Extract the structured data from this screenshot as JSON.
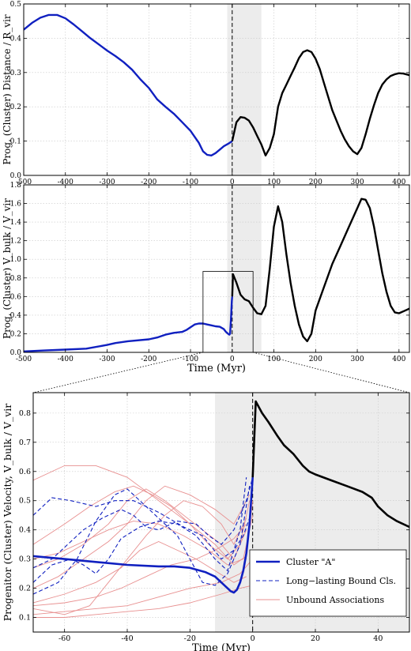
{
  "chart_data": [
    {
      "type": "line",
      "id": "top",
      "ylabel": "Prog, (Cluster) Distance / R_vir",
      "xlim": [
        -500,
        425
      ],
      "ylim": [
        0,
        0.5
      ],
      "xticks": [
        "-500",
        "-400",
        "-300",
        "-200",
        "-100",
        "0",
        "100",
        "200",
        "300",
        "400"
      ],
      "yticks": [
        "0.0",
        "0.1",
        "0.2",
        "0.3",
        "0.4",
        "0.5"
      ],
      "grid": true,
      "shaded_region": [
        -12,
        70
      ],
      "vline_x": 0,
      "series": [
        {
          "color": "#1020c0",
          "x": [
            -500,
            -480,
            -460,
            -440,
            -420,
            -400,
            -380,
            -360,
            -340,
            -320,
            -300,
            -280,
            -260,
            -240,
            -220,
            -200,
            -180,
            -160,
            -140,
            -120,
            -100,
            -80,
            -70,
            -60,
            -50,
            -40,
            -30,
            -20,
            -10,
            0
          ],
          "y": [
            0.425,
            0.445,
            0.46,
            0.468,
            0.468,
            0.458,
            0.44,
            0.42,
            0.4,
            0.382,
            0.364,
            0.348,
            0.33,
            0.308,
            0.28,
            0.255,
            0.222,
            0.2,
            0.18,
            0.155,
            0.13,
            0.095,
            0.07,
            0.06,
            0.058,
            0.065,
            0.075,
            0.085,
            0.092,
            0.1
          ]
        },
        {
          "color": "#000000",
          "x": [
            0,
            10,
            20,
            30,
            40,
            50,
            60,
            70,
            80,
            90,
            100,
            110,
            120,
            130,
            140,
            150,
            160,
            170,
            180,
            190,
            200,
            210,
            220,
            230,
            240,
            250,
            260,
            270,
            280,
            290,
            300,
            310,
            320,
            330,
            340,
            350,
            360,
            370,
            380,
            390,
            400,
            410,
            420,
            425
          ],
          "y": [
            0.1,
            0.155,
            0.17,
            0.168,
            0.16,
            0.14,
            0.115,
            0.09,
            0.058,
            0.08,
            0.12,
            0.2,
            0.24,
            0.265,
            0.29,
            0.315,
            0.342,
            0.36,
            0.365,
            0.36,
            0.34,
            0.31,
            0.27,
            0.23,
            0.19,
            0.16,
            0.13,
            0.105,
            0.085,
            0.07,
            0.062,
            0.08,
            0.12,
            0.165,
            0.205,
            0.24,
            0.265,
            0.28,
            0.29,
            0.295,
            0.298,
            0.297,
            0.294,
            0.292
          ]
        }
      ]
    },
    {
      "type": "line",
      "id": "mid",
      "ylabel": "Prog, (Cluster) V_bulk / V_vir",
      "xlabel": "Time (Myr)",
      "xlim": [
        -500,
        425
      ],
      "ylim": [
        0,
        1.8
      ],
      "xticks": [
        "-500",
        "-400",
        "-300",
        "-200",
        "-100",
        "0",
        "100",
        "200",
        "300",
        "400"
      ],
      "yticks": [
        "0.0",
        "0.2",
        "0.4",
        "0.6",
        "0.8",
        "1.0",
        "1.2",
        "1.4",
        "1.6",
        "1.8"
      ],
      "grid": true,
      "shaded_region": [
        -12,
        70
      ],
      "vline_x": 0,
      "inset_box": {
        "x": [
          -70,
          50
        ],
        "y": [
          0,
          0.87
        ]
      },
      "series": [
        {
          "color": "#1020c0",
          "x": [
            -500,
            -450,
            -400,
            -350,
            -300,
            -280,
            -250,
            -200,
            -180,
            -160,
            -140,
            -120,
            -110,
            -100,
            -90,
            -80,
            -70,
            -60,
            -50,
            -40,
            -30,
            -20,
            -15,
            -10,
            -7,
            -5,
            -3,
            -1,
            0
          ],
          "y": [
            0.01,
            0.02,
            0.03,
            0.04,
            0.08,
            0.1,
            0.12,
            0.14,
            0.16,
            0.19,
            0.21,
            0.22,
            0.24,
            0.27,
            0.3,
            0.31,
            0.31,
            0.3,
            0.29,
            0.28,
            0.275,
            0.25,
            0.22,
            0.2,
            0.19,
            0.2,
            0.35,
            0.55,
            0.6
          ]
        },
        {
          "color": "#000000",
          "x": [
            0,
            2,
            10,
            20,
            30,
            40,
            50,
            60,
            70,
            80,
            90,
            100,
            110,
            120,
            130,
            140,
            150,
            160,
            170,
            180,
            190,
            200,
            220,
            240,
            260,
            280,
            300,
            310,
            320,
            330,
            340,
            350,
            360,
            370,
            380,
            390,
            400,
            410,
            420,
            425
          ],
          "y": [
            0.6,
            0.84,
            0.75,
            0.62,
            0.57,
            0.55,
            0.48,
            0.42,
            0.41,
            0.5,
            0.9,
            1.35,
            1.57,
            1.4,
            1.05,
            0.75,
            0.5,
            0.3,
            0.17,
            0.12,
            0.2,
            0.45,
            0.7,
            0.95,
            1.15,
            1.35,
            1.55,
            1.65,
            1.64,
            1.55,
            1.35,
            1.1,
            0.85,
            0.65,
            0.5,
            0.43,
            0.42,
            0.44,
            0.46,
            0.47
          ]
        }
      ]
    },
    {
      "type": "line",
      "id": "bottom",
      "ylabel": "Progenitor (Cluster) Velocity, V_bulk / V_vir",
      "xlabel": "Time (Myr)",
      "xlim": [
        -70,
        50
      ],
      "ylim": [
        0.05,
        0.87
      ],
      "xticks": [
        "-60",
        "-40",
        "-20",
        "0",
        "20",
        "40"
      ],
      "yticks": [
        "0.1",
        "0.2",
        "0.3",
        "0.4",
        "0.5",
        "0.6",
        "0.7",
        "0.8"
      ],
      "grid": true,
      "shaded_region": [
        -12,
        50
      ],
      "vline_x": 0,
      "legend": {
        "position": "bottom-right",
        "entries": [
          {
            "label": "Cluster \"A\"",
            "style": "solid-thick",
            "color": "#1020c0"
          },
          {
            "label": "Long−lasting Bound Cls.",
            "style": "dashed",
            "color": "#1020c0"
          },
          {
            "label": "Unbound Associations",
            "style": "solid-thin",
            "color": "#e89090"
          }
        ]
      },
      "main_series": [
        {
          "name": "Cluster \"A\"",
          "color": "#1020c0",
          "x": [
            -70,
            -60,
            -50,
            -40,
            -30,
            -25,
            -20,
            -15,
            -12,
            -10,
            -9,
            -8,
            -7,
            -6,
            -5,
            -4,
            -3,
            -2,
            -1,
            0
          ],
          "y": [
            0.31,
            0.3,
            0.29,
            0.28,
            0.275,
            0.275,
            0.27,
            0.255,
            0.24,
            0.22,
            0.21,
            0.2,
            0.19,
            0.185,
            0.195,
            0.22,
            0.26,
            0.32,
            0.42,
            0.58
          ]
        },
        {
          "color": "#000000",
          "x": [
            0,
            1,
            3,
            5,
            8,
            10,
            13,
            16,
            18,
            20,
            25,
            30,
            35,
            38,
            40,
            43,
            46,
            50
          ],
          "y": [
            0.58,
            0.84,
            0.8,
            0.77,
            0.72,
            0.69,
            0.66,
            0.62,
            0.6,
            0.59,
            0.57,
            0.55,
            0.53,
            0.51,
            0.48,
            0.45,
            0.43,
            0.41
          ]
        }
      ],
      "bound_series": [
        {
          "x": [
            -70,
            -64,
            -58,
            -50,
            -44,
            -38,
            -30,
            -22,
            -16,
            -10,
            -6,
            -3,
            -1
          ],
          "y": [
            0.45,
            0.51,
            0.5,
            0.48,
            0.5,
            0.5,
            0.46,
            0.41,
            0.38,
            0.3,
            0.33,
            0.38,
            0.44
          ]
        },
        {
          "x": [
            -70,
            -62,
            -56,
            -50,
            -44,
            -40,
            -36,
            -30,
            -24,
            -20,
            -16,
            -12,
            -8,
            -4,
            -1
          ],
          "y": [
            0.18,
            0.22,
            0.3,
            0.43,
            0.52,
            0.54,
            0.5,
            0.44,
            0.38,
            0.3,
            0.22,
            0.21,
            0.25,
            0.35,
            0.55
          ]
        },
        {
          "x": [
            -70,
            -64,
            -60,
            -54,
            -48,
            -42,
            -38,
            -34,
            -30,
            -24,
            -18,
            -14,
            -10,
            -6,
            -2,
            0
          ],
          "y": [
            0.27,
            0.3,
            0.34,
            0.4,
            0.44,
            0.47,
            0.45,
            0.41,
            0.4,
            0.43,
            0.42,
            0.38,
            0.35,
            0.4,
            0.5,
            0.58
          ]
        },
        {
          "x": [
            -70,
            -64,
            -58,
            -54,
            -50,
            -46,
            -42,
            -36,
            -30,
            -24,
            -18,
            -12,
            -8,
            -4,
            -2
          ],
          "y": [
            0.22,
            0.28,
            0.3,
            0.28,
            0.25,
            0.3,
            0.37,
            0.41,
            0.43,
            0.42,
            0.38,
            0.3,
            0.26,
            0.4,
            0.58
          ]
        }
      ],
      "unbound_series": [
        {
          "x": [
            -70,
            -60,
            -50,
            -40,
            -30,
            -20,
            -12,
            -6,
            -2,
            0
          ],
          "y": [
            0.57,
            0.62,
            0.62,
            0.58,
            0.5,
            0.42,
            0.35,
            0.28,
            0.31,
            0.5
          ]
        },
        {
          "x": [
            -70,
            -60,
            -52,
            -44,
            -38,
            -32,
            -26,
            -20,
            -14,
            -8,
            -4,
            -1
          ],
          "y": [
            0.35,
            0.42,
            0.48,
            0.53,
            0.55,
            0.52,
            0.48,
            0.42,
            0.35,
            0.3,
            0.35,
            0.5
          ]
        },
        {
          "x": [
            -70,
            -62,
            -54,
            -46,
            -40,
            -34,
            -28,
            -22,
            -16,
            -10,
            -6,
            -2
          ],
          "y": [
            0.27,
            0.3,
            0.35,
            0.42,
            0.5,
            0.54,
            0.5,
            0.45,
            0.4,
            0.35,
            0.3,
            0.4
          ]
        },
        {
          "x": [
            -70,
            -60,
            -50,
            -42,
            -36,
            -30,
            -24,
            -18,
            -12,
            -6,
            -2
          ],
          "y": [
            0.15,
            0.18,
            0.22,
            0.27,
            0.33,
            0.36,
            0.33,
            0.3,
            0.26,
            0.22,
            0.24
          ]
        },
        {
          "x": [
            -70,
            -60,
            -50,
            -40,
            -30,
            -20,
            -10,
            -4,
            0
          ],
          "y": [
            0.11,
            0.12,
            0.13,
            0.14,
            0.17,
            0.2,
            0.22,
            0.25,
            0.3
          ]
        },
        {
          "x": [
            -70,
            -60,
            -50,
            -40,
            -30,
            -20,
            -10,
            -4,
            0
          ],
          "y": [
            0.1,
            0.1,
            0.11,
            0.12,
            0.13,
            0.15,
            0.18,
            0.2,
            0.21
          ]
        },
        {
          "x": [
            -70,
            -60,
            -52,
            -46,
            -40,
            -34,
            -28,
            -22,
            -16,
            -10,
            -6,
            -2
          ],
          "y": [
            0.13,
            0.11,
            0.14,
            0.22,
            0.3,
            0.38,
            0.45,
            0.5,
            0.48,
            0.42,
            0.35,
            0.44
          ]
        },
        {
          "x": [
            -70,
            -62,
            -54,
            -46,
            -38,
            -30,
            -22,
            -14,
            -8,
            -3,
            0
          ],
          "y": [
            0.3,
            0.32,
            0.36,
            0.4,
            0.43,
            0.42,
            0.38,
            0.33,
            0.28,
            0.3,
            0.45
          ]
        },
        {
          "x": [
            -70,
            -62,
            -54,
            -46,
            -40,
            -34,
            -28,
            -20,
            -12,
            -6,
            -1
          ],
          "y": [
            0.2,
            0.24,
            0.3,
            0.36,
            0.42,
            0.5,
            0.55,
            0.52,
            0.47,
            0.42,
            0.52
          ]
        },
        {
          "x": [
            -70,
            -60,
            -50,
            -42,
            -34,
            -26,
            -18,
            -12,
            -6,
            -2
          ],
          "y": [
            0.14,
            0.15,
            0.17,
            0.2,
            0.24,
            0.28,
            0.3,
            0.33,
            0.37,
            0.42
          ]
        }
      ]
    }
  ]
}
